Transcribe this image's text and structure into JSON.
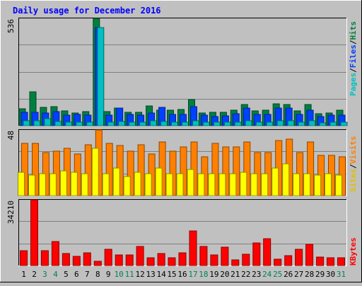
{
  "chart_data": {
    "type": "bar",
    "title": "Daily usage for December 2016",
    "categories": [
      "1",
      "2",
      "3",
      "4",
      "5",
      "6",
      "7",
      "8",
      "9",
      "10",
      "11",
      "12",
      "13",
      "14",
      "15",
      "16",
      "17",
      "18",
      "19",
      "20",
      "21",
      "22",
      "23",
      "24",
      "25",
      "26",
      "27",
      "28",
      "29",
      "30",
      "31"
    ],
    "weekend_days": [
      "3",
      "4",
      "10",
      "11",
      "17",
      "18",
      "24",
      "25",
      "31"
    ],
    "panels": [
      {
        "id": "hits",
        "max_label": "536",
        "ylim": [
          0,
          536
        ],
        "series": [
          {
            "name": "Hits",
            "color": "#008040",
            "values": [
              83,
              168,
              92,
              96,
              72,
              64,
              70,
              536,
              70,
              86,
              66,
              66,
              97,
              76,
              76,
              82,
              131,
              62,
              66,
              66,
              77,
              104,
              72,
              78,
              108,
              106,
              74,
              104,
              60,
              63,
              76
            ]
          },
          {
            "name": "Files",
            "color": "#0040ff",
            "values": [
              67,
              67,
              62,
              70,
              53,
              56,
              52,
              486,
              51,
              89,
              57,
              52,
              63,
              92,
              55,
              56,
              94,
              52,
              47,
              49,
              61,
              89,
              56,
              56,
              88,
              88,
              55,
              78,
              46,
              51,
              53
            ]
          },
          {
            "name": "Pages",
            "color": "#00c0c0",
            "values": [
              23,
              23,
              35,
              22,
              18,
              19,
              16,
              486,
              16,
              22,
              18,
              17,
              23,
              22,
              17,
              18,
              23,
              18,
              17,
              16,
              18,
              24,
              17,
              18,
              24,
              24,
              18,
              24,
              15,
              16,
              17
            ]
          }
        ]
      },
      {
        "id": "visits",
        "max_label": "48",
        "ylim": [
          0,
          48
        ],
        "series": [
          {
            "name": "Visits",
            "color": "#ff8000",
            "values": [
              38,
              38,
              31,
              32,
              34,
              30,
              37,
              48,
              38,
              36,
              32,
              37,
              30,
              39,
              32,
              35,
              39,
              28,
              38,
              35,
              35,
              39,
              31,
              31,
              40,
              41,
              31,
              39,
              29,
              29,
              28
            ]
          },
          {
            "name": "Sites",
            "color": "#ffff00",
            "values": [
              17,
              15,
              16,
              16,
              18,
              17,
              16,
              34,
              16,
              20,
              14,
              17,
              16,
              20,
              16,
              16,
              19,
              16,
              16,
              16,
              16,
              17,
              16,
              16,
              20,
              23,
              16,
              16,
              15,
              16,
              15
            ]
          }
        ]
      },
      {
        "id": "kbytes",
        "max_label": "34210",
        "ylim": [
          0,
          34210
        ],
        "series": [
          {
            "name": "KBytes",
            "color": "#ff0000",
            "values": [
              7800,
              34210,
              7600,
              12500,
              6300,
              4900,
              6400,
              2100,
              8400,
              5400,
              5400,
              9900,
              3900,
              6300,
              4100,
              6400,
              17900,
              9900,
              5300,
              9300,
              2900,
              5800,
              11500,
              13900,
              3400,
              5200,
              8400,
              10900,
              4200,
              4100,
              3900
            ]
          }
        ]
      }
    ],
    "legend": {
      "hits_panel": [
        "Pages",
        "/",
        "Files",
        "/",
        "Hits"
      ],
      "visits_panel": [
        "Sites",
        "/",
        "Visits"
      ],
      "kbytes_panel": [
        "KBytes"
      ]
    },
    "colors": {
      "background": "#c0c0c0",
      "plot_bg": "#c0c0c0",
      "grid": "#808080",
      "title": "#0000ff",
      "weekday_label": "#000000",
      "weekend_label": "#00805c"
    }
  }
}
